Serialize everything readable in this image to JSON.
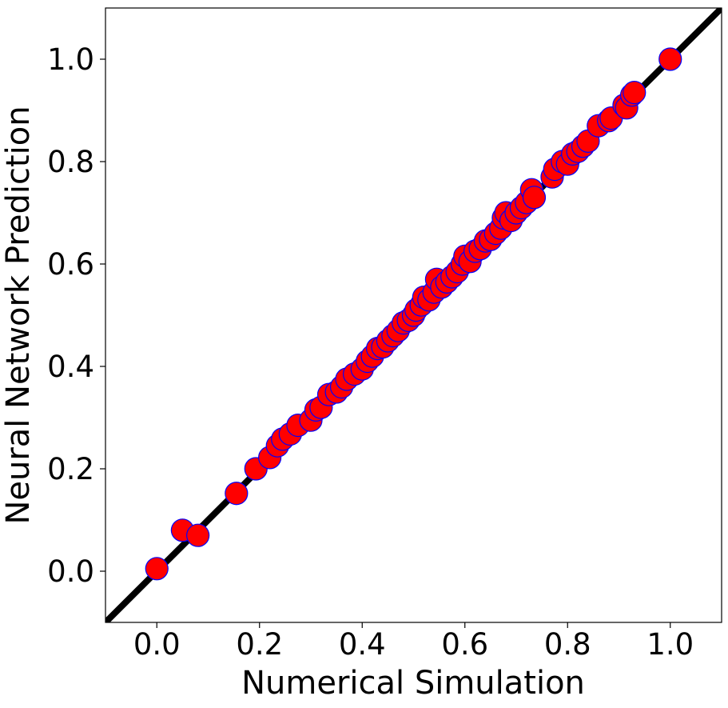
{
  "chart_data": {
    "type": "scatter",
    "xlabel": "Numerical Simulation",
    "ylabel": "Neural Network Prediction",
    "xlim": [
      -0.1,
      1.1
    ],
    "ylim": [
      -0.1,
      1.1
    ],
    "xticks": [
      "0.0",
      "0.2",
      "0.4",
      "0.6",
      "0.8",
      "1.0"
    ],
    "yticks": [
      "0.0",
      "0.2",
      "0.4",
      "0.6",
      "0.8",
      "1.0"
    ],
    "grid": false,
    "reference_line": {
      "slope": 1,
      "intercept": 0,
      "color": "#000000"
    },
    "marker": {
      "fill": "#ff0000",
      "edge": "#0000ff"
    },
    "series": [
      {
        "points": [
          [
            0.0,
            0.005
          ],
          [
            0.05,
            0.08
          ],
          [
            0.08,
            0.07
          ],
          [
            0.155,
            0.152
          ],
          [
            0.193,
            0.2
          ],
          [
            0.22,
            0.222
          ],
          [
            0.235,
            0.245
          ],
          [
            0.245,
            0.258
          ],
          [
            0.26,
            0.268
          ],
          [
            0.275,
            0.285
          ],
          [
            0.3,
            0.295
          ],
          [
            0.31,
            0.315
          ],
          [
            0.32,
            0.32
          ],
          [
            0.335,
            0.345
          ],
          [
            0.35,
            0.35
          ],
          [
            0.36,
            0.36
          ],
          [
            0.37,
            0.375
          ],
          [
            0.385,
            0.385
          ],
          [
            0.4,
            0.395
          ],
          [
            0.41,
            0.41
          ],
          [
            0.42,
            0.42
          ],
          [
            0.43,
            0.435
          ],
          [
            0.44,
            0.438
          ],
          [
            0.45,
            0.45
          ],
          [
            0.46,
            0.46
          ],
          [
            0.47,
            0.47
          ],
          [
            0.48,
            0.485
          ],
          [
            0.49,
            0.49
          ],
          [
            0.5,
            0.5
          ],
          [
            0.505,
            0.51
          ],
          [
            0.515,
            0.52
          ],
          [
            0.52,
            0.535
          ],
          [
            0.53,
            0.53
          ],
          [
            0.54,
            0.545
          ],
          [
            0.545,
            0.57
          ],
          [
            0.555,
            0.555
          ],
          [
            0.565,
            0.565
          ],
          [
            0.575,
            0.575
          ],
          [
            0.585,
            0.585
          ],
          [
            0.595,
            0.6
          ],
          [
            0.6,
            0.615
          ],
          [
            0.61,
            0.605
          ],
          [
            0.62,
            0.625
          ],
          [
            0.63,
            0.63
          ],
          [
            0.64,
            0.645
          ],
          [
            0.65,
            0.648
          ],
          [
            0.66,
            0.66
          ],
          [
            0.67,
            0.67
          ],
          [
            0.675,
            0.69
          ],
          [
            0.68,
            0.7
          ],
          [
            0.69,
            0.685
          ],
          [
            0.7,
            0.7
          ],
          [
            0.71,
            0.71
          ],
          [
            0.72,
            0.72
          ],
          [
            0.73,
            0.745
          ],
          [
            0.735,
            0.73
          ],
          [
            0.77,
            0.77
          ],
          [
            0.775,
            0.785
          ],
          [
            0.79,
            0.8
          ],
          [
            0.8,
            0.795
          ],
          [
            0.81,
            0.815
          ],
          [
            0.82,
            0.82
          ],
          [
            0.83,
            0.83
          ],
          [
            0.84,
            0.84
          ],
          [
            0.86,
            0.87
          ],
          [
            0.88,
            0.88
          ],
          [
            0.885,
            0.885
          ],
          [
            0.91,
            0.91
          ],
          [
            0.915,
            0.905
          ],
          [
            0.925,
            0.93
          ],
          [
            0.93,
            0.935
          ],
          [
            1.0,
            1.0
          ]
        ]
      }
    ]
  }
}
